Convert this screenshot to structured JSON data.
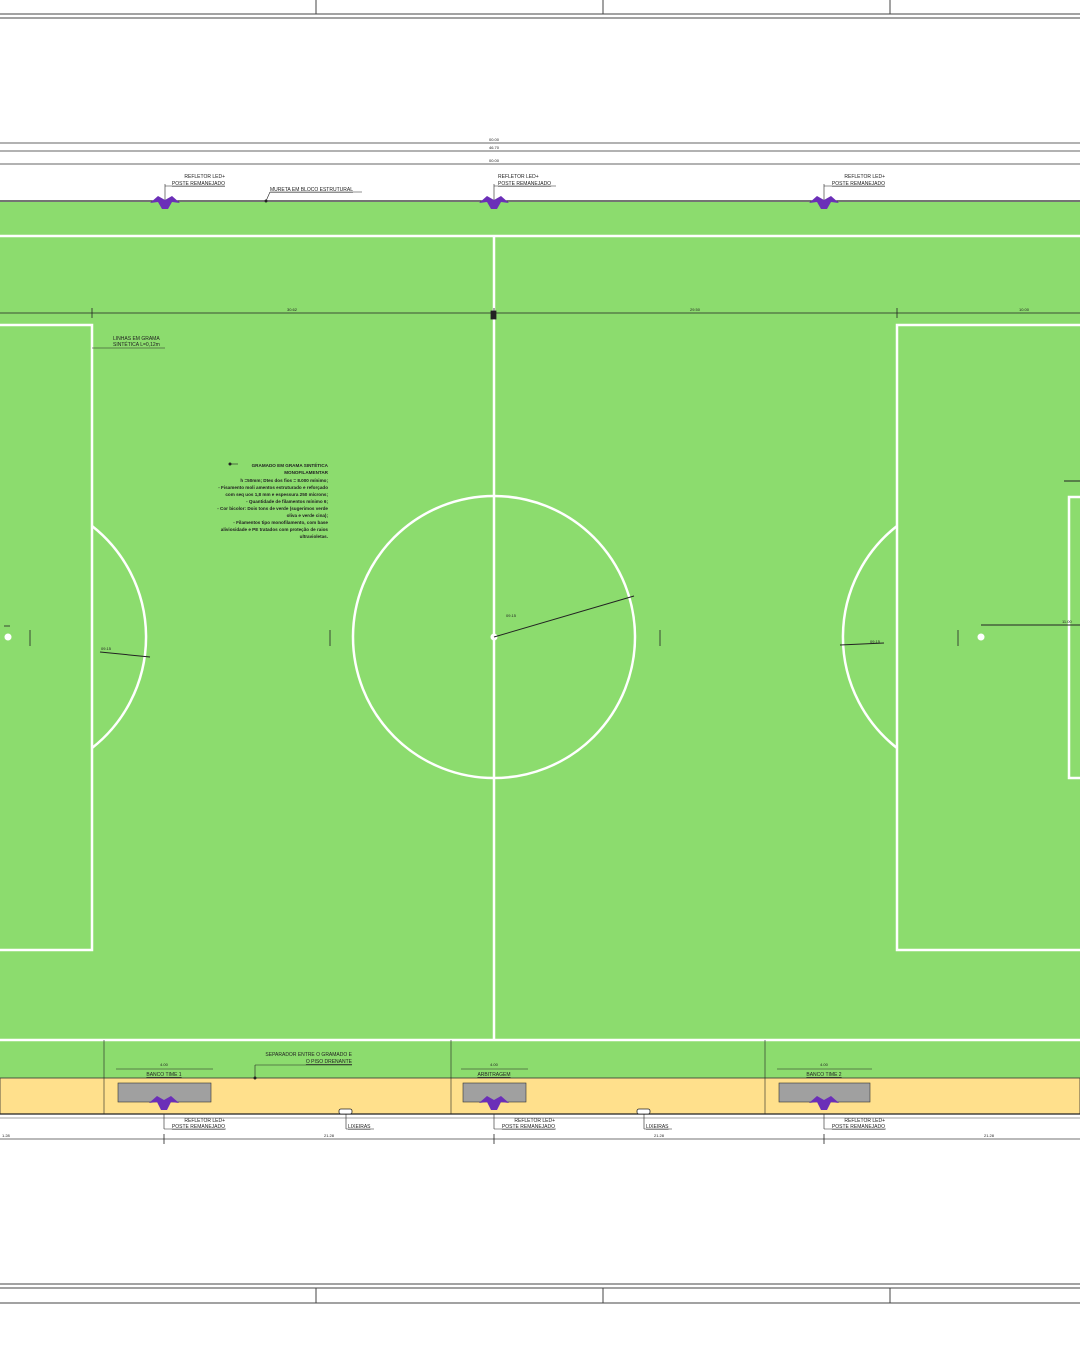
{
  "drawing": {
    "colors": {
      "grass": "#8cdc6e",
      "track": "#ffe08c",
      "pitch_lines": "#ffffff",
      "pole": "#6b2fb8",
      "bench": "#a0a0a0",
      "linework": "#333333"
    },
    "top_dims": {
      "d1": "00.00",
      "d2": "46.70",
      "d3": "00.00"
    },
    "top_labels": {
      "pole_left_1": "REFLETOR LED+",
      "pole_left_2": "POSTE REMANEJADO",
      "wall_label": "MURETA EM BLOCO ESTRUTURAL",
      "pole_center_1": "REFLETOR LED+",
      "pole_center_2": "POSTE REMANEJADO",
      "pole_right_1": "REFLETOR LED+",
      "pole_right_2": "POSTE REMANEJADO"
    },
    "field_dims": {
      "left_half": "30.62",
      "right_half": "29.50",
      "right_end": "10.00",
      "center_radius": "09.15",
      "left_arc": "09.15",
      "right_arc": "09.15",
      "right_spot": "11.00"
    },
    "lines_note_1": "LINHAS EM GRAMA",
    "lines_note_2": "SINTÉTICA L=0,12m",
    "turf_note": [
      "GRAMADO EM GRAMA SINTÉTICA",
      "MONOFILAMENTAR",
      "h =50mm; Dtex dos fios = 8.000 mínimo;",
      "- Fisamento moli amentos estruturado e reforçado",
      "com seq uos 1,8 mm e espessura 250 mícrons;",
      "- Quantidade de filamentos mínimo 6;",
      "- Cor bicolor: Dois tons de verde (sugerimos verde",
      "oliva e verde cina);",
      "- Filamentos tipo monofilamento, com base",
      "aliviosidade e PE tratados com proteção de raios",
      "ultravioletas."
    ],
    "bottom_labels": {
      "separator_1": "SEPARADOR ENTRE O GRAMADO E",
      "separator_2": "O PISO DRENANTE",
      "bench1_dim": "4.00",
      "bench1": "BANCO TIME 1",
      "ref_dim": "4.00",
      "referee": "ARBITRAGEM",
      "bench2_dim": "4.00",
      "bench2": "BANCO TIME 2",
      "pole_b1_1": "REFLETOR LED+",
      "pole_b1_2": "POSTE REMANEJADO",
      "pole_b2_1": "REFLETOR LED+",
      "pole_b2_2": "POSTE REMANEJADO",
      "pole_b3_1": "REFLETOR LED+",
      "pole_b3_2": "POSTE REMANEJADO",
      "bin1": "LIXEIRAS",
      "bin2": "LIXEIRAS"
    },
    "bottom_dims": {
      "b0": "1.28",
      "b1": "21.28",
      "b2": "21.28",
      "b3": "21.28"
    }
  }
}
